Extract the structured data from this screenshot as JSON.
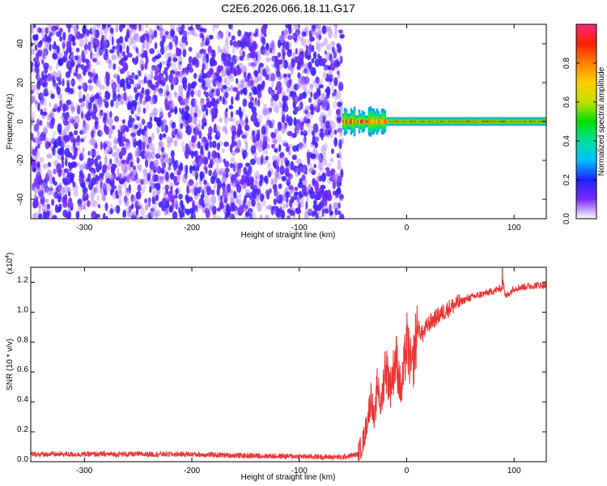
{
  "title": "C2E6.2026.066.18.11.G17",
  "chart_data": [
    {
      "type": "heatmap",
      "name": "spectrogram",
      "xlabel": "Height of straight line (km)",
      "ylabel": "Frequency (Hz)",
      "xlim": [
        -350,
        130
      ],
      "ylim": [
        -50,
        50
      ],
      "xticks": [
        -300,
        -200,
        -100,
        0,
        100
      ],
      "yticks": [
        -40,
        -20,
        0,
        20,
        40
      ],
      "noise_region": {
        "x_range": [
          -350,
          -60
        ],
        "y_range": [
          -50,
          50
        ],
        "level": 0.1
      },
      "signal_region": {
        "x_range": [
          -60,
          130
        ],
        "center_hz": 0,
        "level": 0.75
      },
      "colorbar": {
        "label": "Normalized spectral amplitude",
        "range": [
          0.0,
          1.0
        ],
        "ticks": [
          "0.0",
          "0.2",
          "0.4",
          "0.6",
          "0.8"
        ],
        "tick_values": [
          0.0,
          0.2,
          0.4,
          0.6,
          0.8
        ],
        "colormap": [
          "#ffffff",
          "#7a2bff",
          "#2020ff",
          "#00c0ff",
          "#00e0a0",
          "#00e000",
          "#c0e000",
          "#ffd000",
          "#ff8000",
          "#ff2000",
          "#ff2a7a"
        ]
      }
    },
    {
      "type": "line",
      "name": "snr",
      "xlabel": "Height of straight line (km)",
      "ylabel": "SNR (10 * v/v)",
      "yscale_label": "(x10",
      "yscale_exp": "4",
      "yscale_close": ")",
      "xlim": [
        -350,
        130
      ],
      "ylim": [
        0,
        1.3
      ],
      "xticks": [
        -300,
        -200,
        -100,
        0,
        100
      ],
      "yticks": [
        "0.0",
        "0.2",
        "0.4",
        "0.6",
        "0.8",
        "1.0",
        "1.2"
      ],
      "ytick_values": [
        0.0,
        0.2,
        0.4,
        0.6,
        0.8,
        1.0,
        1.2
      ],
      "color": "#ee3333",
      "series": [
        {
          "x": [
            -350,
            -300,
            -250,
            -200,
            -150,
            -100,
            -60,
            -45,
            -40,
            -36,
            -33,
            -30,
            -27,
            -24,
            -20,
            -15,
            -10,
            -5,
            0,
            5,
            10,
            15,
            20,
            30,
            40,
            50,
            60,
            70,
            80,
            88,
            90,
            92,
            100,
            110,
            120,
            130
          ],
          "values": [
            0.05,
            0.05,
            0.05,
            0.05,
            0.04,
            0.035,
            0.03,
            0.05,
            0.15,
            0.3,
            0.45,
            0.25,
            0.55,
            0.35,
            0.65,
            0.5,
            0.7,
            0.45,
            0.8,
            0.6,
            0.9,
            0.85,
            0.92,
            0.98,
            1.03,
            1.07,
            1.1,
            1.12,
            1.14,
            1.16,
            1.2,
            1.1,
            1.16,
            1.17,
            1.18,
            1.18
          ]
        }
      ]
    }
  ]
}
